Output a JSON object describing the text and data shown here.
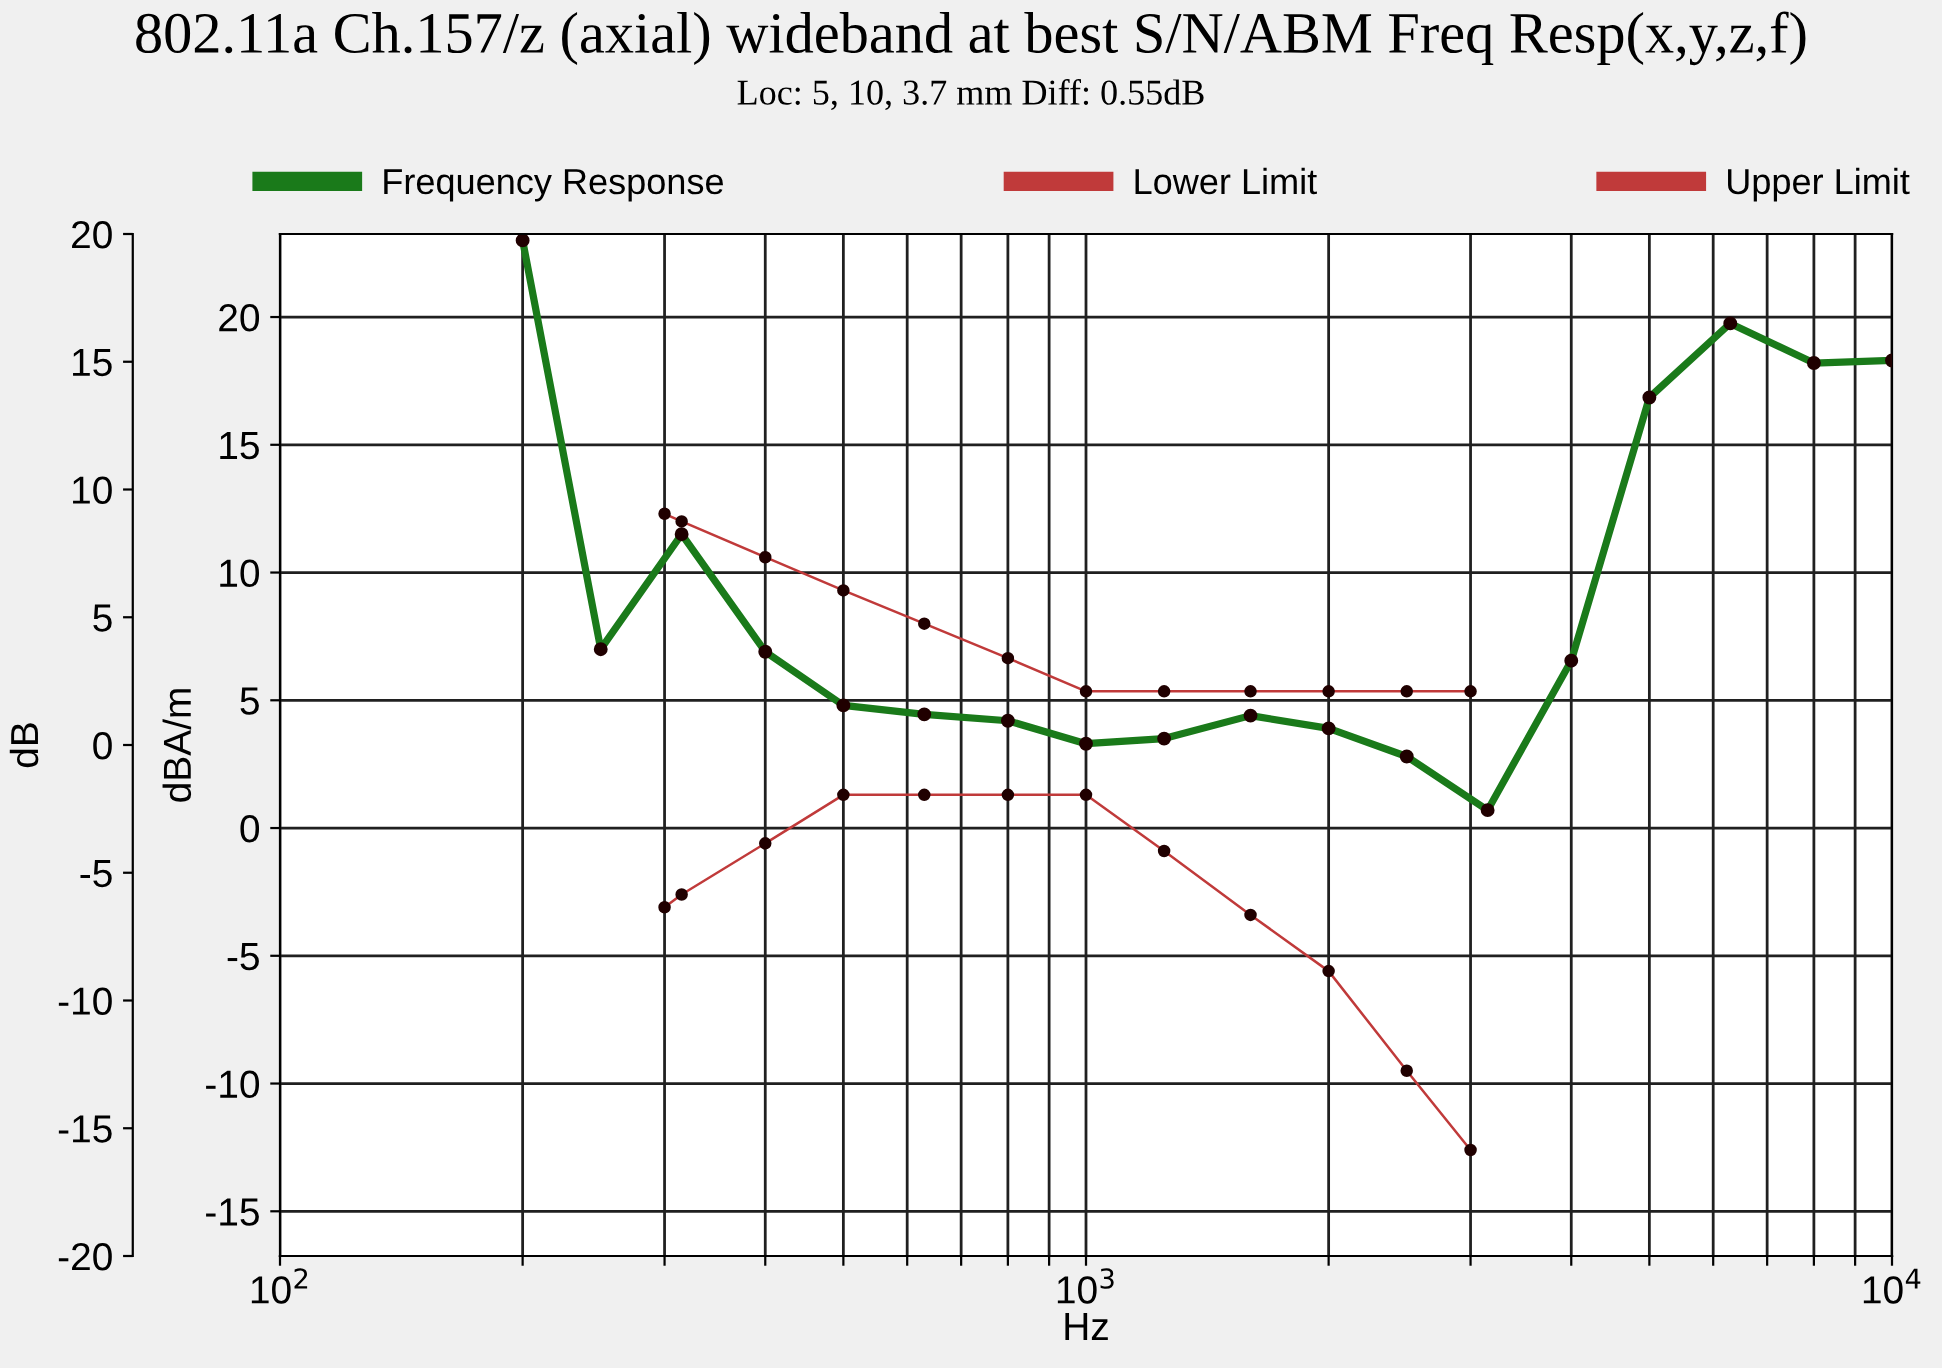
{
  "chart_data": {
    "type": "line",
    "title": "802.11a Ch.157/z (axial) wideband at best S/N/ABM Freq Resp(x,y,z,f)",
    "subtitle": "Loc: 5, 10, 3.7 mm Diff: 0.55dB",
    "xlabel": "Hz",
    "ylabel": "dBA/m",
    "y2label": "dB",
    "log": "x",
    "xlim": [
      100,
      10000
    ],
    "xticks": [
      {
        "value": 100,
        "label": "10$^{2}$"
      },
      {
        "value": 200,
        "label": null
      },
      {
        "value": 300,
        "label": null
      },
      {
        "value": 400,
        "label": null
      },
      {
        "value": 500,
        "label": null
      },
      {
        "value": 600,
        "label": null
      },
      {
        "value": 700,
        "label": null
      },
      {
        "value": 800,
        "label": null
      },
      {
        "value": 900,
        "label": null
      },
      {
        "value": 1000,
        "label": "10$^{3}$"
      },
      {
        "value": 2000,
        "label": null
      },
      {
        "value": 3000,
        "label": null
      },
      {
        "value": 4000,
        "label": null
      },
      {
        "value": 5000,
        "label": null
      },
      {
        "value": 6000,
        "label": null
      },
      {
        "value": 7000,
        "label": null
      },
      {
        "value": 8000,
        "label": null
      },
      {
        "value": 9000,
        "label": null
      },
      {
        "value": 10000,
        "label": "10$^{4}$"
      }
    ],
    "ylim": [
      -16.75,
      23.25
    ],
    "yticks": [
      -15,
      -10,
      -5,
      0,
      5,
      10,
      15,
      20
    ],
    "y2lim": [
      -20,
      20
    ],
    "y2ticks": [
      -20,
      -15,
      -10,
      -5,
      0,
      5,
      10,
      15,
      20
    ],
    "grid": true,
    "legend": "top",
    "marker": "circle",
    "line_style": "solid",
    "series": [
      {
        "name": "Frequency Response",
        "color": "#1a7a1a",
        "x": [
          200,
          250,
          315,
          400,
          500,
          630,
          800,
          1000,
          1250,
          1600,
          2000,
          2500,
          3150,
          4000,
          5000,
          6300,
          8000,
          10000
        ],
        "values": [
          23,
          7.0,
          11.5,
          6.9,
          4.8,
          4.45,
          4.2,
          3.3,
          3.5,
          4.4,
          3.9,
          2.8,
          0.7,
          6.55,
          16.85,
          19.75,
          18.2,
          18.3
        ]
      },
      {
        "name": "Lower Limit",
        "color": "#c03a3a",
        "x": [
          300,
          315,
          400,
          500,
          630,
          800,
          1000,
          1250,
          1600,
          2000,
          2500,
          3000
        ],
        "values": [
          -3.1,
          -2.6,
          -0.6,
          1.3,
          1.3,
          1.3,
          1.3,
          -0.9,
          -3.4,
          -5.6,
          -9.5,
          -12.6
        ]
      },
      {
        "name": "Upper Limit",
        "color": "#c03a3a",
        "x": [
          300,
          315,
          400,
          500,
          630,
          800,
          1000,
          1250,
          1600,
          2000,
          2500,
          3000
        ],
        "values": [
          12.3,
          12.0,
          10.6,
          9.3,
          8.0,
          6.65,
          5.35,
          5.35,
          5.35,
          5.35,
          5.35,
          5.35
        ]
      }
    ]
  }
}
